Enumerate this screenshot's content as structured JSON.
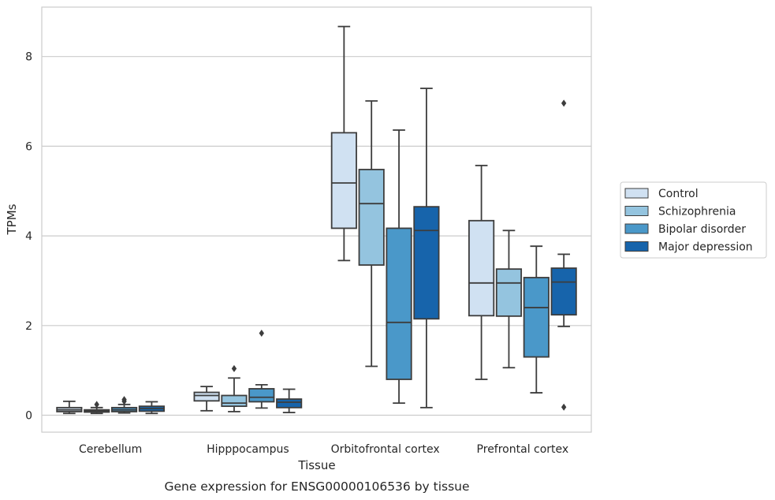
{
  "chart_data": {
    "type": "box",
    "title": "",
    "caption": "Gene expression for ENSG00000106536 by tissue",
    "xlabel": "Tissue",
    "ylabel": "TPMs",
    "ylim": [
      -0.38,
      9.1
    ],
    "yticks": [
      "0",
      "2",
      "4",
      "6",
      "8"
    ],
    "grid": "horizontal",
    "legend_position": "right",
    "categories": [
      "Cerebellum",
      "Hipppocampus",
      "Orbitofrontal cortex",
      "Prefrontal cortex"
    ],
    "series": [
      {
        "name": "Control",
        "color": "#d0e1f2",
        "boxes": [
          {
            "whislo": 0.04,
            "q1": 0.08,
            "med": 0.12,
            "q3": 0.17,
            "whishi": 0.31,
            "fliers": []
          },
          {
            "whislo": 0.1,
            "q1": 0.32,
            "med": 0.44,
            "q3": 0.51,
            "whishi": 0.64,
            "fliers": []
          },
          {
            "whislo": 3.45,
            "q1": 4.17,
            "med": 5.18,
            "q3": 6.3,
            "whishi": 8.67,
            "fliers": []
          },
          {
            "whislo": 0.8,
            "q1": 2.22,
            "med": 2.95,
            "q3": 4.34,
            "whishi": 5.57,
            "fliers": []
          }
        ]
      },
      {
        "name": "Schizophrenia",
        "color": "#94c4df",
        "boxes": [
          {
            "whislo": 0.04,
            "q1": 0.07,
            "med": 0.09,
            "q3": 0.12,
            "whishi": 0.17,
            "fliers": [
              0.24
            ]
          },
          {
            "whislo": 0.08,
            "q1": 0.2,
            "med": 0.27,
            "q3": 0.44,
            "whishi": 0.83,
            "fliers": [
              1.04
            ]
          },
          {
            "whislo": 1.09,
            "q1": 3.35,
            "med": 4.72,
            "q3": 5.48,
            "whishi": 7.01,
            "fliers": []
          },
          {
            "whislo": 1.06,
            "q1": 2.21,
            "med": 2.95,
            "q3": 3.26,
            "whishi": 4.12,
            "fliers": []
          }
        ]
      },
      {
        "name": "Bipolar disorder",
        "color": "#4a98c9",
        "boxes": [
          {
            "whislo": 0.05,
            "q1": 0.08,
            "med": 0.12,
            "q3": 0.17,
            "whishi": 0.24,
            "fliers": [
              0.31,
              0.35
            ]
          },
          {
            "whislo": 0.16,
            "q1": 0.3,
            "med": 0.4,
            "q3": 0.59,
            "whishi": 0.68,
            "fliers": [
              1.83
            ]
          },
          {
            "whislo": 0.27,
            "q1": 0.8,
            "med": 2.07,
            "q3": 4.17,
            "whishi": 6.36,
            "fliers": []
          },
          {
            "whislo": 0.5,
            "q1": 1.3,
            "med": 2.4,
            "q3": 3.07,
            "whishi": 3.77,
            "fliers": []
          }
        ]
      },
      {
        "name": "Major depression",
        "color": "#1764ab",
        "boxes": [
          {
            "whislo": 0.04,
            "q1": 0.09,
            "med": 0.15,
            "q3": 0.2,
            "whishi": 0.3,
            "fliers": []
          },
          {
            "whislo": 0.06,
            "q1": 0.17,
            "med": 0.29,
            "q3": 0.36,
            "whishi": 0.58,
            "fliers": []
          },
          {
            "whislo": 0.17,
            "q1": 2.15,
            "med": 4.12,
            "q3": 4.65,
            "whishi": 7.29,
            "fliers": []
          },
          {
            "whislo": 1.98,
            "q1": 2.24,
            "med": 2.97,
            "q3": 3.28,
            "whishi": 3.59,
            "fliers": [
              0.18,
              6.96
            ]
          }
        ]
      }
    ]
  }
}
